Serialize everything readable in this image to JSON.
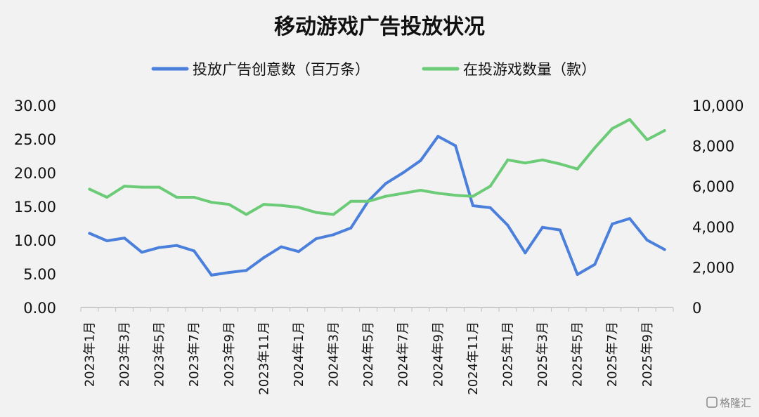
{
  "chart_data": {
    "type": "line",
    "title": "移动游戏广告投放状况",
    "x": [
      "2023年1月",
      "2023年2月",
      "2023年3月",
      "2023年4月",
      "2023年5月",
      "2023年6月",
      "2023年7月",
      "2023年8月",
      "2023年9月",
      "2023年10月",
      "2023年11月",
      "2023年12月",
      "2024年1月",
      "2024年2月",
      "2024年3月",
      "2024年4月",
      "2024年5月",
      "2024年6月",
      "2024年7月",
      "2024年8月",
      "2024年9月",
      "2024年10月",
      "2024年11月",
      "2024年12月",
      "2025年1月",
      "2025年2月",
      "2025年3月",
      "2025年4月",
      "2025年5月",
      "2025年6月",
      "2025年7月",
      "2025年8月",
      "2025年9月",
      "2025年10月"
    ],
    "x_tick_labels_shown": [
      "2023年1月",
      "2023年3月",
      "2023年5月",
      "2023年7月",
      "2023年9月",
      "2023年11月",
      "2024年1月",
      "2024年3月",
      "2024年5月",
      "2024年7月",
      "2024年9月",
      "2024年11月",
      "2025年1月",
      "2025年3月",
      "2025年5月",
      "2025年7月",
      "2025年9月"
    ],
    "y_left": {
      "ylim": [
        0,
        30
      ],
      "ticks": [
        "0.00",
        "5.00",
        "10.00",
        "15.00",
        "20.00",
        "25.00",
        "30.00"
      ]
    },
    "y_right": {
      "ylim": [
        0,
        10000
      ],
      "ticks": [
        "0",
        "2,000",
        "4,000",
        "6,000",
        "8,000",
        "10,000"
      ]
    },
    "series": [
      {
        "name": "投放广告创意数（百万条）",
        "axis": "left",
        "color": "#4a7fdc",
        "values": [
          11.0,
          9.9,
          10.3,
          8.2,
          8.9,
          9.2,
          8.4,
          4.8,
          5.2,
          5.5,
          7.4,
          9.0,
          8.3,
          10.2,
          10.8,
          11.8,
          15.8,
          18.4,
          20.0,
          21.8,
          25.4,
          24.0,
          15.1,
          14.8,
          12.2,
          8.1,
          11.9,
          11.5,
          4.9,
          6.4,
          12.4,
          13.2,
          10.0,
          8.6
        ]
      },
      {
        "name": "在投游戏数量（款）",
        "axis": "right",
        "color": "#6bcb77",
        "values": [
          5850,
          5450,
          6000,
          5950,
          5950,
          5450,
          5450,
          5200,
          5100,
          4600,
          5100,
          5050,
          4950,
          4700,
          4600,
          5250,
          5250,
          5500,
          5650,
          5800,
          5650,
          5550,
          5500,
          6000,
          7300,
          7150,
          7300,
          7100,
          6850,
          7900,
          8850,
          9300,
          8300,
          8750
        ]
      }
    ],
    "grid": false,
    "legend_position": "top-center"
  },
  "watermark": "格隆汇"
}
